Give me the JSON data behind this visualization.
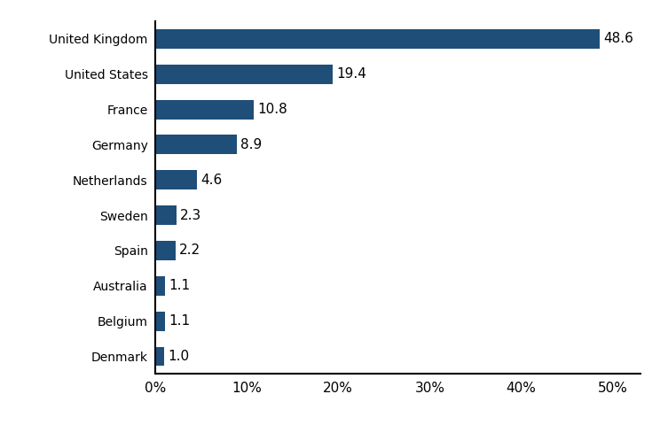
{
  "categories": [
    "Denmark",
    "Belgium",
    "Australia",
    "Spain",
    "Sweden",
    "Netherlands",
    "Germany",
    "France",
    "United States",
    "United Kingdom"
  ],
  "values": [
    1.0,
    1.1,
    1.1,
    2.2,
    2.3,
    4.6,
    8.9,
    10.8,
    19.4,
    48.6
  ],
  "bar_color": "#1F4E79",
  "label_color": "#000000",
  "background_color": "#ffffff",
  "xtick_labels": [
    "0%",
    "10%",
    "20%",
    "30%",
    "40%",
    "50%"
  ],
  "xtick_values": [
    0,
    10,
    20,
    30,
    40,
    50
  ],
  "xlim": [
    0,
    53
  ],
  "label_fontsize": 11,
  "tick_fontsize": 11,
  "bar_height": 0.55
}
